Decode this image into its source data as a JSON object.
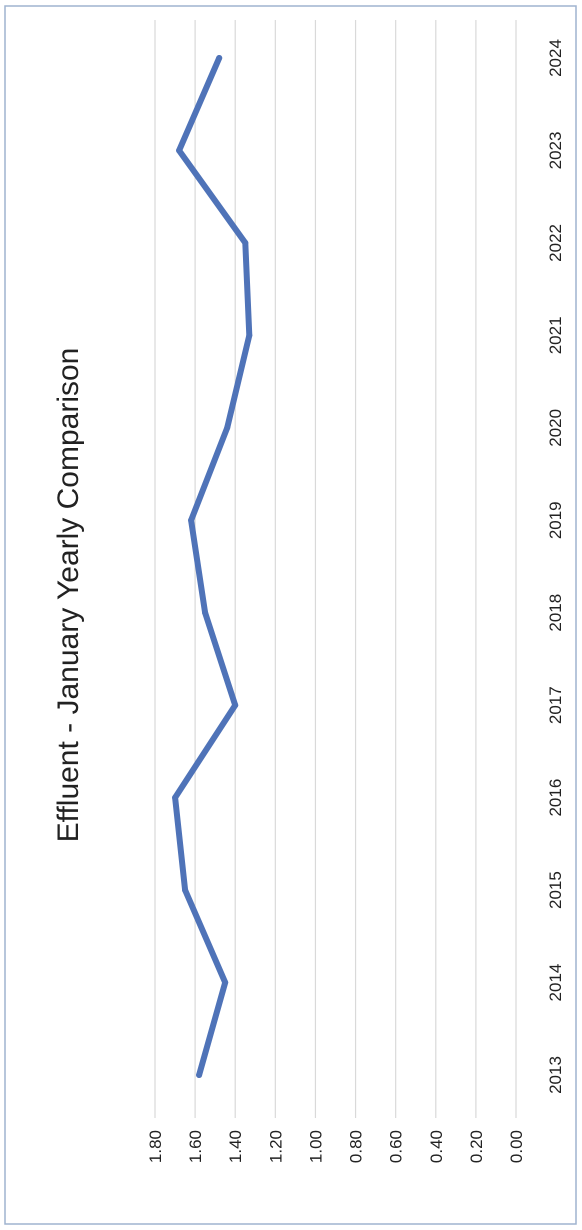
{
  "chart_data": {
    "type": "line",
    "title": "Effluent - January Yearly Comparison",
    "xlabel": "",
    "ylabel": "",
    "ylim": [
      0,
      1.8
    ],
    "yticks": [
      "0.00",
      "0.20",
      "0.40",
      "0.60",
      "0.80",
      "1.00",
      "1.20",
      "1.40",
      "1.60",
      "1.80"
    ],
    "categories": [
      "2013",
      "2014",
      "2015",
      "2016",
      "2017",
      "2018",
      "2019",
      "2020",
      "2021",
      "2022",
      "2023",
      "2024"
    ],
    "series": [
      {
        "name": "",
        "color": "#4f73b8",
        "values": [
          1.58,
          1.45,
          1.65,
          1.7,
          1.4,
          1.55,
          1.62,
          1.44,
          1.33,
          1.35,
          1.68,
          1.48
        ]
      }
    ],
    "grid": true,
    "orientation": "rotated 90 degrees clockwise"
  }
}
